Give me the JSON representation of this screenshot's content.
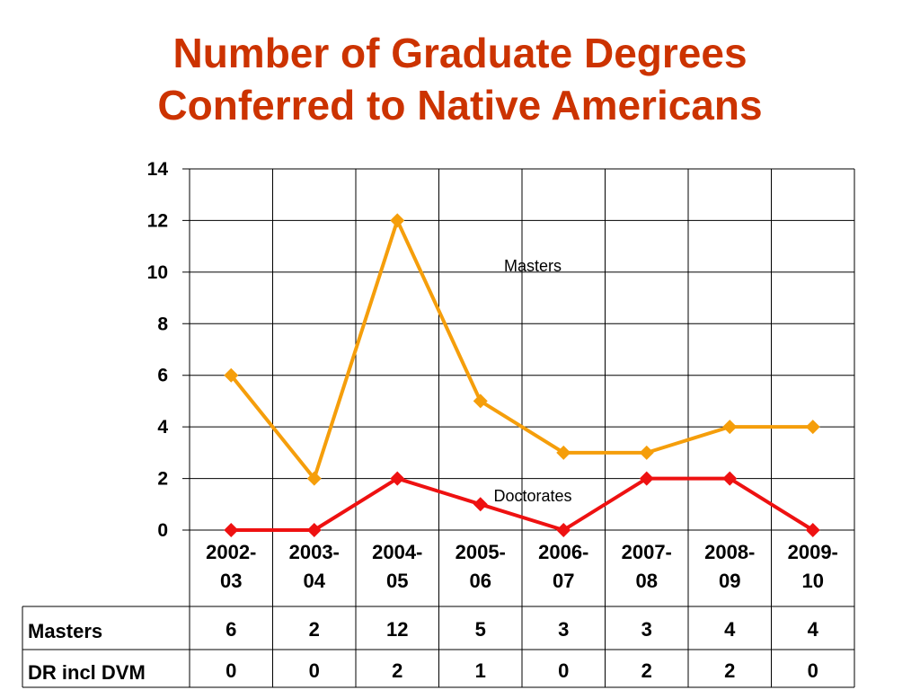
{
  "title": {
    "line1": "Number of Graduate Degrees",
    "line2": "Conferred to Native Americans"
  },
  "colors": {
    "title": "#cc3300",
    "masters": "#f59e0b",
    "doctorates": "#ee1111"
  },
  "chart_data": {
    "type": "line",
    "categories": [
      "2002-03",
      "2003-04",
      "2004-05",
      "2005-06",
      "2006-07",
      "2007-08",
      "2008-09",
      "2009-10"
    ],
    "category_lines": [
      [
        "2002-",
        "03"
      ],
      [
        "2003-",
        "04"
      ],
      [
        "2004-",
        "05"
      ],
      [
        "2005-",
        "06"
      ],
      [
        "2006-",
        "07"
      ],
      [
        "2007-",
        "08"
      ],
      [
        "2008-",
        "09"
      ],
      [
        "2009-",
        "10"
      ]
    ],
    "series": [
      {
        "name": "Masters",
        "table_label": "Masters",
        "values": [
          6,
          2,
          12,
          5,
          3,
          3,
          4,
          4
        ],
        "color": "#f59e0b",
        "marker": "diamond"
      },
      {
        "name": "Doctorates",
        "table_label": "DR incl DVM",
        "values": [
          0,
          0,
          2,
          1,
          0,
          2,
          2,
          0
        ],
        "color": "#ee1111",
        "marker": "diamond"
      }
    ],
    "annotations": [
      "Masters",
      "Doctorates"
    ],
    "ylim": [
      0,
      14
    ],
    "yticks": [
      0,
      2,
      4,
      6,
      8,
      10,
      12,
      14
    ],
    "grid": true,
    "legend": "data table below chart"
  }
}
